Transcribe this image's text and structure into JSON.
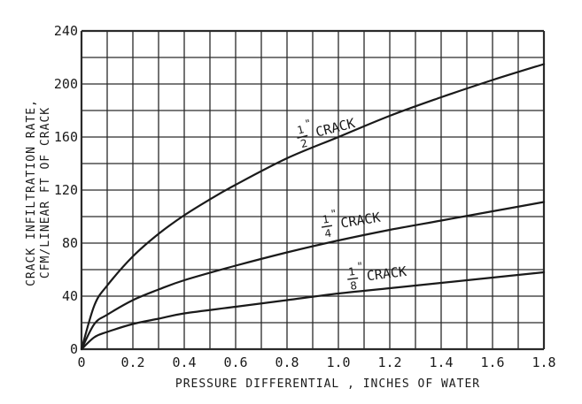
{
  "chart_data": {
    "type": "line",
    "xlabel": "PRESSURE DIFFERENTIAL , INCHES OF WATER",
    "ylabel_lines": [
      "CRACK INFILTRATION RATE,",
      "CFM/LINEAR FT OF CRACK"
    ],
    "xlim": [
      0,
      1.8
    ],
    "ylim": [
      0,
      240
    ],
    "x_ticks": [
      "0",
      "0.2",
      "0.4",
      "0.6",
      "0.8",
      "1.0",
      "1.2",
      "1.4",
      "1.6",
      "1.8"
    ],
    "y_ticks": [
      "0",
      "40",
      "80",
      "120",
      "160",
      "200",
      "240"
    ],
    "grid": true,
    "series": [
      {
        "key": "half",
        "name": "1/2\" CRACK",
        "fraction": {
          "num": "1",
          "den": "2",
          "mark": "\""
        },
        "label_text": "CRACK",
        "x": [
          0,
          0.05,
          0.1,
          0.2,
          0.3,
          0.4,
          0.5,
          0.6,
          0.8,
          1.0,
          1.2,
          1.4,
          1.6,
          1.8
        ],
        "values": [
          0,
          33,
          48,
          70,
          87,
          101,
          113,
          124,
          144,
          160,
          176,
          190,
          203,
          215
        ]
      },
      {
        "key": "quarter",
        "name": "1/4\" CRACK",
        "fraction": {
          "num": "1",
          "den": "4",
          "mark": "\""
        },
        "label_text": "CRACK",
        "x": [
          0,
          0.05,
          0.1,
          0.2,
          0.3,
          0.4,
          0.6,
          0.8,
          1.0,
          1.2,
          1.4,
          1.6,
          1.8
        ],
        "values": [
          0,
          19,
          26,
          37,
          45,
          52,
          63,
          73,
          82,
          90,
          97,
          104,
          111
        ]
      },
      {
        "key": "eighth",
        "name": "1/8\" CRACK",
        "fraction": {
          "num": "1",
          "den": "8",
          "mark": "\""
        },
        "label_text": "CRACK",
        "x": [
          0,
          0.05,
          0.1,
          0.2,
          0.3,
          0.4,
          0.6,
          0.8,
          1.0,
          1.2,
          1.4,
          1.6,
          1.8
        ],
        "values": [
          0,
          9,
          13,
          19,
          23,
          27,
          32,
          37,
          42,
          46,
          50,
          54,
          58
        ]
      }
    ],
    "colors": {
      "line": "#1a1a1a",
      "grid": "#2a2a2a",
      "background": "#ffffff"
    }
  }
}
